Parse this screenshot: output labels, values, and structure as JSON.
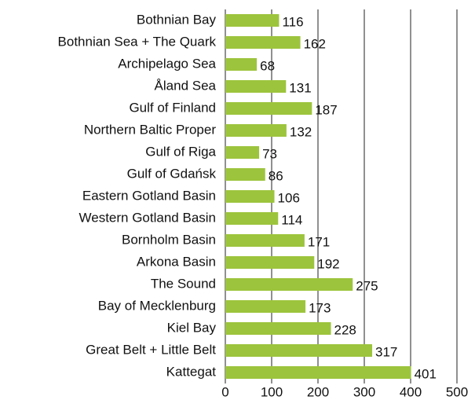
{
  "chart_data": {
    "type": "bar",
    "orientation": "horizontal",
    "categories": [
      "Bothnian Bay",
      "Bothnian Sea + The Quark",
      "Archipelago Sea",
      "Åland Sea",
      "Gulf of Finland",
      "Northern Baltic Proper",
      "Gulf of Riga",
      "Gulf of Gdańsk",
      "Eastern Gotland Basin",
      "Western Gotland Basin",
      "Bornholm Basin",
      "Arkona Basin",
      "The Sound",
      "Bay of Mecklenburg",
      "Kiel Bay",
      "Great Belt + Little Belt",
      "Kattegat"
    ],
    "values": [
      116,
      162,
      68,
      131,
      187,
      132,
      73,
      86,
      106,
      114,
      171,
      192,
      275,
      173,
      228,
      317,
      401
    ],
    "color": "#9dc43d",
    "xlim": [
      0,
      500
    ],
    "xticks": [
      0,
      100,
      200,
      300,
      400,
      500
    ],
    "grid": true
  }
}
